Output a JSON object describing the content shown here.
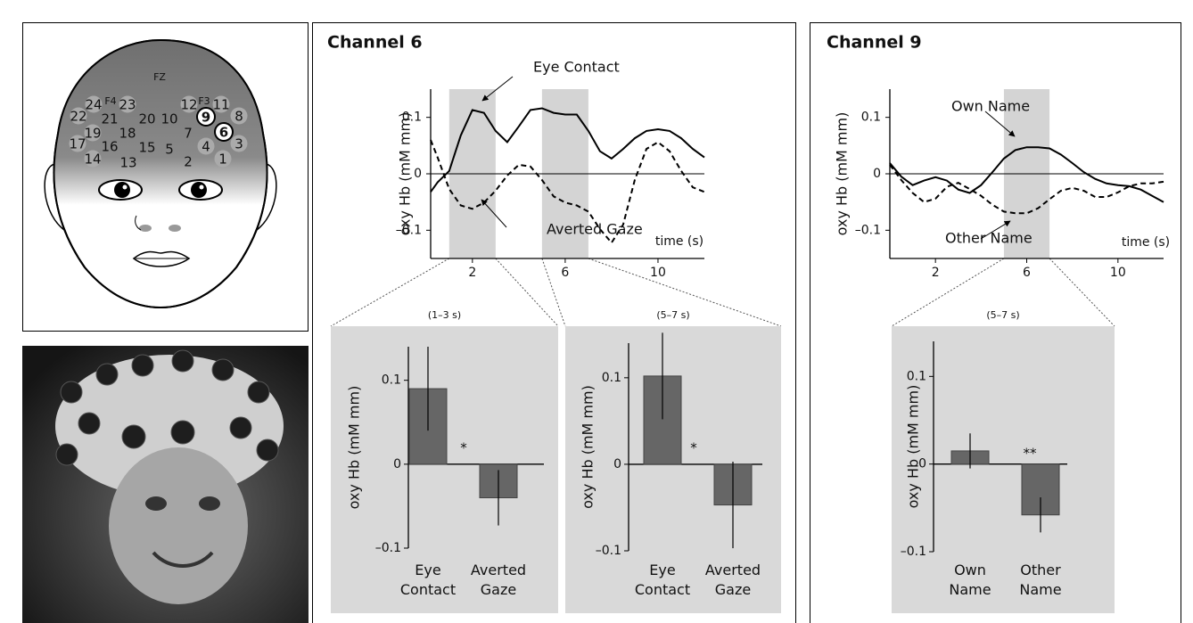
{
  "head": {
    "labels": [
      "FZ",
      "F4",
      "F3"
    ],
    "channels": [
      "1",
      "2",
      "3",
      "4",
      "5",
      "6",
      "7",
      "8",
      "9",
      "10",
      "11",
      "12",
      "13",
      "14",
      "15",
      "16",
      "17",
      "18",
      "19",
      "20",
      "21",
      "22",
      "23",
      "24"
    ]
  },
  "chart_data": [
    {
      "type": "line",
      "title": "Channel 6",
      "ylabel": "oxy Hb (mM mm)",
      "xlabel": "time (s)",
      "x": [
        0.2,
        0.5,
        1,
        1.5,
        2,
        2.5,
        3,
        3.5,
        4,
        4.5,
        5,
        5.5,
        6,
        6.5,
        7,
        7.5,
        8,
        8.5,
        9,
        9.5,
        10,
        10.5,
        11,
        11.5,
        12
      ],
      "xlim": [
        0.2,
        12
      ],
      "xticks": [
        2,
        6,
        10
      ],
      "ylim": [
        -0.15,
        0.15
      ],
      "yticks": [
        0.1,
        0,
        {
          "value": -0.1,
          "label": "–0.1"
        }
      ],
      "shaded": [
        [
          1,
          3
        ],
        [
          5,
          7
        ]
      ],
      "zero_line": true,
      "series": [
        {
          "name": "Eye Contact",
          "color": "#000000",
          "style": "solid",
          "values": [
            -0.032,
            -0.015,
            0.005,
            0.068,
            0.113,
            0.108,
            0.076,
            0.056,
            0.084,
            0.113,
            0.116,
            0.108,
            0.105,
            0.105,
            0.076,
            0.04,
            0.027,
            0.044,
            0.063,
            0.076,
            0.079,
            0.076,
            0.063,
            0.044,
            0.029
          ]
        },
        {
          "name": "Averted Gaze",
          "color": "#000000",
          "style": "dashed",
          "values": [
            0.06,
            0.029,
            -0.027,
            -0.056,
            -0.062,
            -0.051,
            -0.03,
            -0.003,
            0.016,
            0.013,
            -0.011,
            -0.04,
            -0.051,
            -0.056,
            -0.067,
            -0.098,
            -0.122,
            -0.09,
            -0.011,
            0.044,
            0.056,
            0.04,
            0.005,
            -0.024,
            -0.032
          ]
        }
      ]
    },
    {
      "type": "bar",
      "title": "(1–3 s)",
      "ylabel": "oxy Hb (mM mm)",
      "color": "#666666",
      "categories": [
        "Eye Contact",
        "Averted Gaze"
      ],
      "values": [
        0.09,
        -0.04
      ],
      "errors": [
        0.05,
        0.033
      ],
      "ylim": [
        -0.1,
        0.14
      ],
      "yticks": [
        0.1,
        0,
        {
          "value": -0.1,
          "label": "–0.1"
        }
      ],
      "annotation": "*"
    },
    {
      "type": "bar",
      "title": "(5–7 s)",
      "ylabel": "oxy Hb (mM mm)",
      "color": "#666666",
      "categories": [
        "Eye Contact",
        "Averted Gaze"
      ],
      "values": [
        0.102,
        -0.047
      ],
      "errors": [
        0.05,
        0.05
      ],
      "ylim": [
        -0.1,
        0.14
      ],
      "yticks": [
        0.1,
        0,
        {
          "value": -0.1,
          "label": "–0.1"
        }
      ],
      "annotation": "*"
    },
    {
      "type": "line",
      "title": "Channel 9",
      "ylabel": "oxy Hb (mM mm)",
      "xlabel": "time (s)",
      "x": [
        0,
        0.5,
        1,
        1.5,
        2,
        2.5,
        3,
        3.5,
        4,
        4.5,
        5,
        5.5,
        6,
        6.5,
        7,
        7.5,
        8,
        8.5,
        9,
        9.5,
        10,
        10.5,
        11,
        11.5,
        12
      ],
      "xlim": [
        0,
        12
      ],
      "xticks": [
        2,
        6,
        10
      ],
      "ylim": [
        -0.15,
        0.15
      ],
      "yticks": [
        0.1,
        0,
        {
          "value": -0.1,
          "label": "–0.1"
        }
      ],
      "shaded": [
        [
          5,
          7
        ]
      ],
      "zero_line": true,
      "series": [
        {
          "name": "Own Name",
          "color": "#000000",
          "style": "solid",
          "values": [
            0.019,
            -0.005,
            -0.02,
            -0.012,
            -0.006,
            -0.012,
            -0.028,
            -0.034,
            -0.02,
            0.003,
            0.027,
            0.042,
            0.047,
            0.047,
            0.045,
            0.034,
            0.019,
            0.003,
            -0.009,
            -0.017,
            -0.02,
            -0.022,
            -0.028,
            -0.039,
            -0.05
          ]
        },
        {
          "name": "Other Name",
          "color": "#000000",
          "style": "dashed",
          "values": [
            0.016,
            -0.011,
            -0.034,
            -0.05,
            -0.044,
            -0.023,
            -0.016,
            -0.027,
            -0.039,
            -0.055,
            -0.067,
            -0.07,
            -0.07,
            -0.061,
            -0.045,
            -0.03,
            -0.025,
            -0.03,
            -0.041,
            -0.041,
            -0.033,
            -0.022,
            -0.017,
            -0.017,
            -0.014
          ]
        }
      ]
    },
    {
      "type": "bar",
      "title": "(5–7 s)",
      "ylabel": "oxy Hb (mM mm)",
      "color": "#666666",
      "categories": [
        "Own Name",
        "Other Name"
      ],
      "values": [
        0.015,
        -0.058
      ],
      "errors": [
        0.02,
        0.02
      ],
      "ylim": [
        -0.1,
        0.14
      ],
      "yticks": [
        0.1,
        0,
        {
          "value": -0.1,
          "label": "–0.1"
        }
      ],
      "annotation": "**"
    }
  ]
}
